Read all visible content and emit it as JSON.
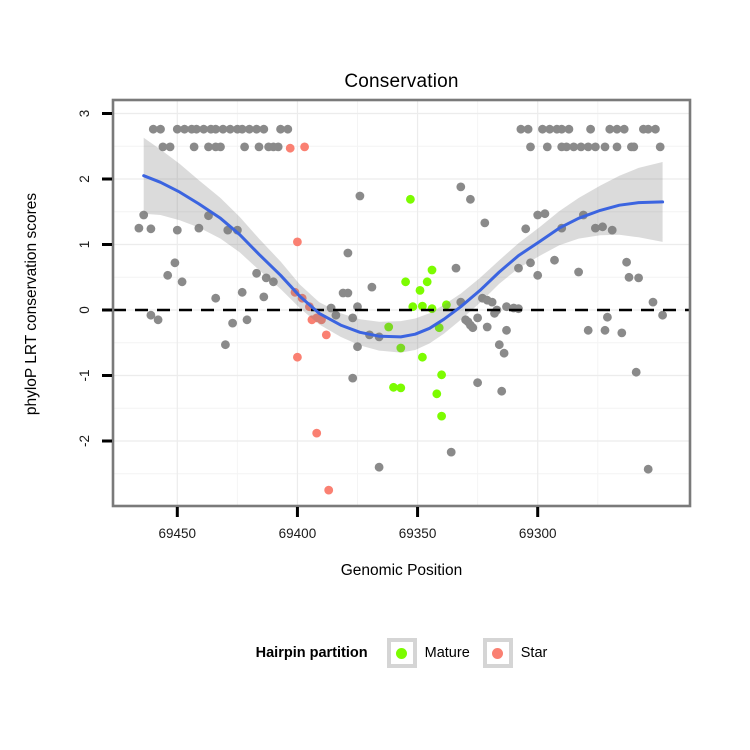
{
  "page": {
    "background": "#ffffff"
  },
  "chart_data": {
    "type": "scatter",
    "title": "Conservation",
    "xlabel": "Genomic Position",
    "ylabel": "phyloP LRT conservation scores",
    "x_axis": {
      "ticks": [
        69450,
        69400,
        69350,
        69300
      ],
      "reversed": true,
      "range": [
        69477,
        69237
      ]
    },
    "y_axis": {
      "ticks": [
        3,
        2,
        1,
        0,
        -1,
        -2
      ],
      "range": [
        -3.0,
        3.2
      ]
    },
    "reference_line": {
      "y": 0,
      "style": "dashed",
      "color": "#000000"
    },
    "colors": {
      "other_points": "#8a8a8a",
      "mature_points": "#7CFC00",
      "star_points": "#FA8072",
      "smooth_line": "#3B64E0",
      "confidence_band": "rgba(125,125,125,0.28)",
      "panel_border": "#7a7a7a",
      "grid_major": "#ececec",
      "grid_minor": "#f4f4f4"
    },
    "legend": {
      "title": "Hairpin partition",
      "position": "bottom",
      "entries": [
        {
          "label": "Mature",
          "color": "#7CFC00"
        },
        {
          "label": "Star",
          "color": "#FA8072"
        }
      ]
    },
    "series": [
      {
        "name": "other",
        "color": "#8a8a8a",
        "points": [
          [
            69460,
            2.76
          ],
          [
            69457,
            2.76
          ],
          [
            69450,
            2.76
          ],
          [
            69447,
            2.76
          ],
          [
            69444,
            2.76
          ],
          [
            69442,
            2.76
          ],
          [
            69439,
            2.76
          ],
          [
            69436,
            2.76
          ],
          [
            69434,
            2.76
          ],
          [
            69431,
            2.76
          ],
          [
            69428,
            2.76
          ],
          [
            69425,
            2.76
          ],
          [
            69423,
            2.76
          ],
          [
            69420,
            2.76
          ],
          [
            69417,
            2.76
          ],
          [
            69414,
            2.76
          ],
          [
            69407,
            2.76
          ],
          [
            69404,
            2.76
          ],
          [
            69307,
            2.76
          ],
          [
            69304,
            2.76
          ],
          [
            69298,
            2.76
          ],
          [
            69295,
            2.76
          ],
          [
            69292,
            2.76
          ],
          [
            69290,
            2.76
          ],
          [
            69287,
            2.76
          ],
          [
            69278,
            2.76
          ],
          [
            69270,
            2.76
          ],
          [
            69267,
            2.76
          ],
          [
            69264,
            2.76
          ],
          [
            69256,
            2.76
          ],
          [
            69254,
            2.76
          ],
          [
            69251,
            2.76
          ],
          [
            69456,
            2.49
          ],
          [
            69453,
            2.49
          ],
          [
            69443,
            2.49
          ],
          [
            69437,
            2.49
          ],
          [
            69434,
            2.49
          ],
          [
            69432,
            2.49
          ],
          [
            69422,
            2.49
          ],
          [
            69416,
            2.49
          ],
          [
            69412,
            2.49
          ],
          [
            69410,
            2.49
          ],
          [
            69408,
            2.49
          ],
          [
            69303,
            2.49
          ],
          [
            69296,
            2.49
          ],
          [
            69290,
            2.49
          ],
          [
            69288,
            2.49
          ],
          [
            69285,
            2.49
          ],
          [
            69282,
            2.49
          ],
          [
            69279,
            2.49
          ],
          [
            69276,
            2.49
          ],
          [
            69272,
            2.49
          ],
          [
            69267,
            2.49
          ],
          [
            69261,
            2.49
          ],
          [
            69260,
            2.49
          ],
          [
            69249,
            2.49
          ],
          [
            69374,
            1.74
          ],
          [
            69332,
            1.88
          ],
          [
            69328,
            1.69
          ],
          [
            69322,
            1.33
          ],
          [
            69300,
            1.45
          ],
          [
            69297,
            1.47
          ],
          [
            69305,
            1.24
          ],
          [
            69281,
            1.45
          ],
          [
            69290,
            1.25
          ],
          [
            69276,
            1.25
          ],
          [
            69273,
            1.27
          ],
          [
            69269,
            1.22
          ],
          [
            69464,
            1.45
          ],
          [
            69466,
            1.25
          ],
          [
            69461,
            1.24
          ],
          [
            69450,
            1.22
          ],
          [
            69441,
            1.25
          ],
          [
            69437,
            1.44
          ],
          [
            69429,
            1.22
          ],
          [
            69425,
            1.22
          ],
          [
            69379,
            0.87
          ],
          [
            69451,
            0.72
          ],
          [
            69454,
            0.53
          ],
          [
            69448,
            0.43
          ],
          [
            69434,
            0.18
          ],
          [
            69423,
            0.27
          ],
          [
            69461,
            -0.08
          ],
          [
            69458,
            -0.15
          ],
          [
            69427,
            -0.2
          ],
          [
            69421,
            -0.15
          ],
          [
            69430,
            -0.53
          ],
          [
            69417,
            0.56
          ],
          [
            69413,
            0.49
          ],
          [
            69410,
            0.43
          ],
          [
            69414,
            0.2
          ],
          [
            69386,
            0.03
          ],
          [
            69384,
            -0.08
          ],
          [
            69381,
            0.26
          ],
          [
            69379,
            0.26
          ],
          [
            69375,
            0.05
          ],
          [
            69377,
            -0.12
          ],
          [
            69369,
            0.35
          ],
          [
            69370,
            -0.38
          ],
          [
            69366,
            -0.41
          ],
          [
            69375,
            -0.56
          ],
          [
            69377,
            -1.04
          ],
          [
            69334,
            0.64
          ],
          [
            69332,
            0.12
          ],
          [
            69330,
            -0.15
          ],
          [
            69329,
            -0.18
          ],
          [
            69328,
            -0.23
          ],
          [
            69327,
            -0.27
          ],
          [
            69325,
            -0.12
          ],
          [
            69323,
            0.18
          ],
          [
            69321,
            0.15
          ],
          [
            69319,
            0.12
          ],
          [
            69317,
            0.0
          ],
          [
            69318,
            -0.05
          ],
          [
            69313,
            0.05
          ],
          [
            69310,
            0.03
          ],
          [
            69308,
            0.02
          ],
          [
            69313,
            -0.31
          ],
          [
            69321,
            -0.26
          ],
          [
            69316,
            -0.53
          ],
          [
            69314,
            -0.66
          ],
          [
            69308,
            0.64
          ],
          [
            69303,
            0.72
          ],
          [
            69300,
            0.53
          ],
          [
            69293,
            0.76
          ],
          [
            69283,
            0.58
          ],
          [
            69279,
            -0.31
          ],
          [
            69272,
            -0.31
          ],
          [
            69265,
            -0.35
          ],
          [
            69271,
            -0.11
          ],
          [
            69263,
            0.73
          ],
          [
            69262,
            0.5
          ],
          [
            69258,
            0.49
          ],
          [
            69252,
            0.12
          ],
          [
            69248,
            -0.08
          ],
          [
            69325,
            -1.11
          ],
          [
            69315,
            -1.24
          ],
          [
            69336,
            -2.17
          ],
          [
            69259,
            -0.95
          ],
          [
            69254,
            -2.43
          ],
          [
            69366,
            -2.4
          ]
        ]
      },
      {
        "name": "Mature",
        "color": "#7CFC00",
        "points": [
          [
            69353,
            1.69
          ],
          [
            69355,
            0.43
          ],
          [
            69346,
            0.43
          ],
          [
            69344,
            0.61
          ],
          [
            69349,
            0.3
          ],
          [
            69352,
            0.05
          ],
          [
            69348,
            0.06
          ],
          [
            69344,
            0.02
          ],
          [
            69338,
            0.08
          ],
          [
            69341,
            -0.27
          ],
          [
            69362,
            -0.26
          ],
          [
            69357,
            -0.58
          ],
          [
            69348,
            -0.72
          ],
          [
            69340,
            -0.99
          ],
          [
            69360,
            -1.18
          ],
          [
            69357,
            -1.19
          ],
          [
            69342,
            -1.28
          ],
          [
            69340,
            -1.62
          ]
        ]
      },
      {
        "name": "Star",
        "color": "#FA8072",
        "points": [
          [
            69403,
            2.47
          ],
          [
            69397,
            2.49
          ],
          [
            69400,
            1.04
          ],
          [
            69401,
            0.27
          ],
          [
            69398,
            0.18
          ],
          [
            69395,
            0.05
          ],
          [
            69394,
            -0.15
          ],
          [
            69392,
            -0.12
          ],
          [
            69390,
            -0.15
          ],
          [
            69388,
            -0.38
          ],
          [
            69400,
            -0.72
          ],
          [
            69392,
            -1.88
          ],
          [
            69387,
            -2.75
          ]
        ]
      }
    ],
    "smooth": {
      "x": [
        69464,
        69457,
        69449,
        69441,
        69432,
        69424,
        69416,
        69407,
        69399,
        69391,
        69382,
        69374,
        69366,
        69357,
        69351,
        69345,
        69339,
        69332,
        69324,
        69316,
        69308,
        69299,
        69291,
        69283,
        69274,
        69266,
        69258,
        69248
      ],
      "y": [
        2.05,
        1.95,
        1.8,
        1.62,
        1.4,
        1.15,
        0.85,
        0.53,
        0.21,
        -0.05,
        -0.23,
        -0.34,
        -0.4,
        -0.41,
        -0.37,
        -0.28,
        -0.14,
        0.05,
        0.3,
        0.58,
        0.83,
        1.05,
        1.25,
        1.4,
        1.52,
        1.6,
        1.64,
        1.65
      ],
      "ci": [
        0.58,
        0.5,
        0.43,
        0.36,
        0.31,
        0.27,
        0.24,
        0.21,
        0.18,
        0.17,
        0.18,
        0.2,
        0.22,
        0.24,
        0.24,
        0.23,
        0.22,
        0.2,
        0.19,
        0.18,
        0.19,
        0.22,
        0.26,
        0.31,
        0.38,
        0.45,
        0.53,
        0.61
      ]
    }
  }
}
